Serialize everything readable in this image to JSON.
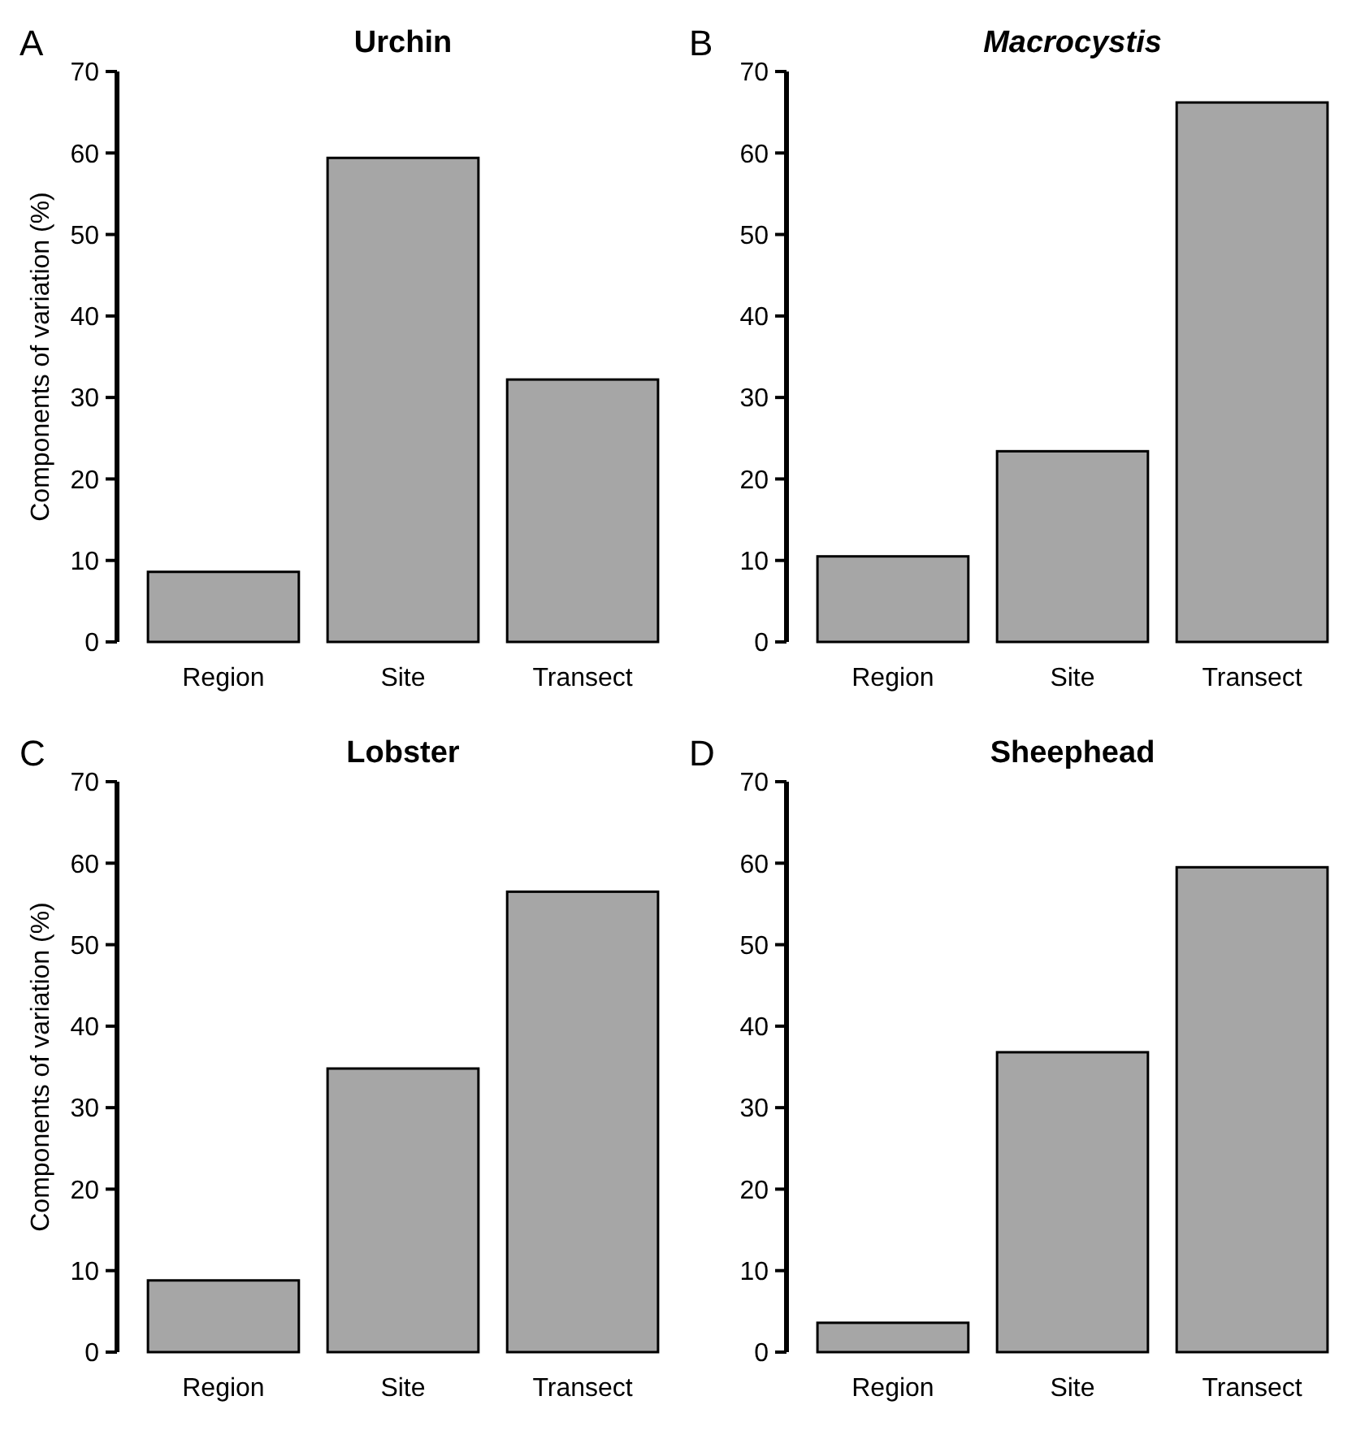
{
  "chart_data": [
    {
      "type": "bar",
      "title": "Urchin",
      "ylabel": "Components of variation (%)",
      "annotations": [
        "A"
      ],
      "categories": [
        "Region",
        "Site",
        "Transect"
      ],
      "values": [
        8.6,
        59.4,
        32.2
      ],
      "color": "#a6a6a6",
      "ylim": [
        0,
        70
      ],
      "yticks": [
        0,
        10,
        20,
        30,
        40,
        50,
        60,
        70
      ]
    },
    {
      "type": "bar",
      "title": "Macrocystis",
      "annotations": [
        "B"
      ],
      "categories": [
        "Region",
        "Site",
        "Transect"
      ],
      "values": [
        10.5,
        23.4,
        66.2
      ],
      "color": "#a6a6a6",
      "ylim": [
        0,
        70
      ],
      "yticks": [
        0,
        10,
        20,
        30,
        40,
        50,
        60,
        70
      ]
    },
    {
      "type": "bar",
      "title": "Lobster",
      "ylabel": "Components of variation (%)",
      "annotations": [
        "C"
      ],
      "categories": [
        "Region",
        "Site",
        "Transect"
      ],
      "values": [
        8.8,
        34.8,
        56.5
      ],
      "color": "#a6a6a6",
      "ylim": [
        0,
        70
      ],
      "yticks": [
        0,
        10,
        20,
        30,
        40,
        50,
        60,
        70
      ]
    },
    {
      "type": "bar",
      "title": "Sheephead",
      "annotations": [
        "D"
      ],
      "categories": [
        "Region",
        "Site",
        "Transect"
      ],
      "values": [
        3.6,
        36.8,
        59.5
      ],
      "color": "#a6a6a6",
      "ylim": [
        0,
        70
      ],
      "yticks": [
        0,
        10,
        20,
        30,
        40,
        50,
        60,
        70
      ]
    }
  ]
}
